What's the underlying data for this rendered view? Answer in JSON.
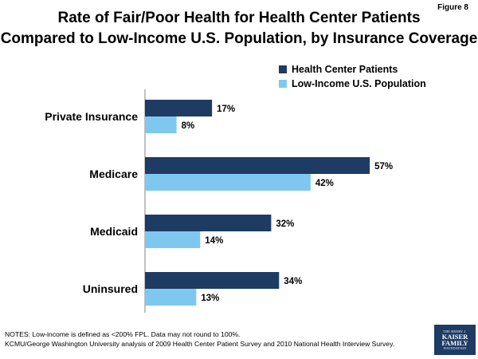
{
  "figure_label": "Figure 8",
  "title_line1": "Rate of Fair/Poor Health for Health Center Patients",
  "title_line2": "Compared to Low-Income U.S. Population, by Insurance Coverage",
  "notes": {
    "line1": "NOTES: Low-income is defined as <200% FPL. Data may not round to 100%.",
    "line2": "KCMU/George Washington University analysis of 2009 Health Center Patient Survey and 2010 National Health Interview Survey."
  },
  "logo": {
    "line1": "THE HENRY J.",
    "line2": "KAISER",
    "line3": "FAMILY",
    "line4": "FOUNDATION"
  },
  "colors": {
    "health_center": "#1e3b64",
    "low_income": "#7ec8f0"
  },
  "chart_data": {
    "type": "bar",
    "orientation": "horizontal",
    "title": "Rate of Fair/Poor Health for Health Center Patients Compared to Low-Income U.S. Population, by Insurance Coverage",
    "categories": [
      "Private Insurance",
      "Medicare",
      "Medicaid",
      "Uninsured"
    ],
    "series": [
      {
        "name": "Health Center Patients",
        "values": [
          17,
          57,
          32,
          34
        ],
        "color": "#1e3b64"
      },
      {
        "name": "Low-Income U.S. Population",
        "values": [
          8,
          42,
          14,
          13
        ],
        "color": "#7ec8f0"
      }
    ],
    "value_suffix": "%",
    "xlim": [
      0,
      100
    ],
    "legend_position": "top-right",
    "grid": false,
    "xlabel": "",
    "ylabel": ""
  }
}
